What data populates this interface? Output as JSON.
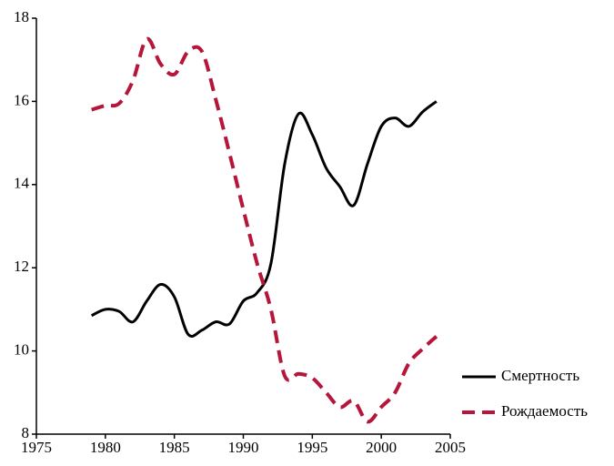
{
  "chart_data": {
    "type": "line",
    "x": [
      1979,
      1980,
      1981,
      1982,
      1983,
      1984,
      1985,
      1986,
      1987,
      1988,
      1989,
      1990,
      1991,
      1992,
      1993,
      1994,
      1995,
      1996,
      1997,
      1998,
      1999,
      2000,
      2001,
      2002,
      2003,
      2004
    ],
    "series": [
      {
        "name": "Смертность",
        "color": "#000000",
        "dash": false,
        "values": [
          10.85,
          11.0,
          10.95,
          10.7,
          11.2,
          11.6,
          11.3,
          10.4,
          10.5,
          10.7,
          10.65,
          11.2,
          11.4,
          12.1,
          14.5,
          15.7,
          15.2,
          14.4,
          13.95,
          13.5,
          14.5,
          15.4,
          15.6,
          15.4,
          15.75,
          16.0
        ]
      },
      {
        "name": "Рождаемость",
        "color": "#b5163a",
        "dash": true,
        "values": [
          15.8,
          15.9,
          15.95,
          16.5,
          17.5,
          16.9,
          16.65,
          17.2,
          17.2,
          16.05,
          14.75,
          13.4,
          12.1,
          11.0,
          9.4,
          9.45,
          9.35,
          9.0,
          8.65,
          8.8,
          8.3,
          8.65,
          9.0,
          9.7,
          10.05,
          10.35
        ]
      }
    ],
    "xlim": [
      1975,
      2005
    ],
    "xticks": [
      1975,
      1980,
      1985,
      1990,
      1995,
      2000,
      2005
    ],
    "ylim": [
      8,
      18
    ],
    "yticks": [
      8,
      10,
      12,
      14,
      16,
      18
    ]
  }
}
